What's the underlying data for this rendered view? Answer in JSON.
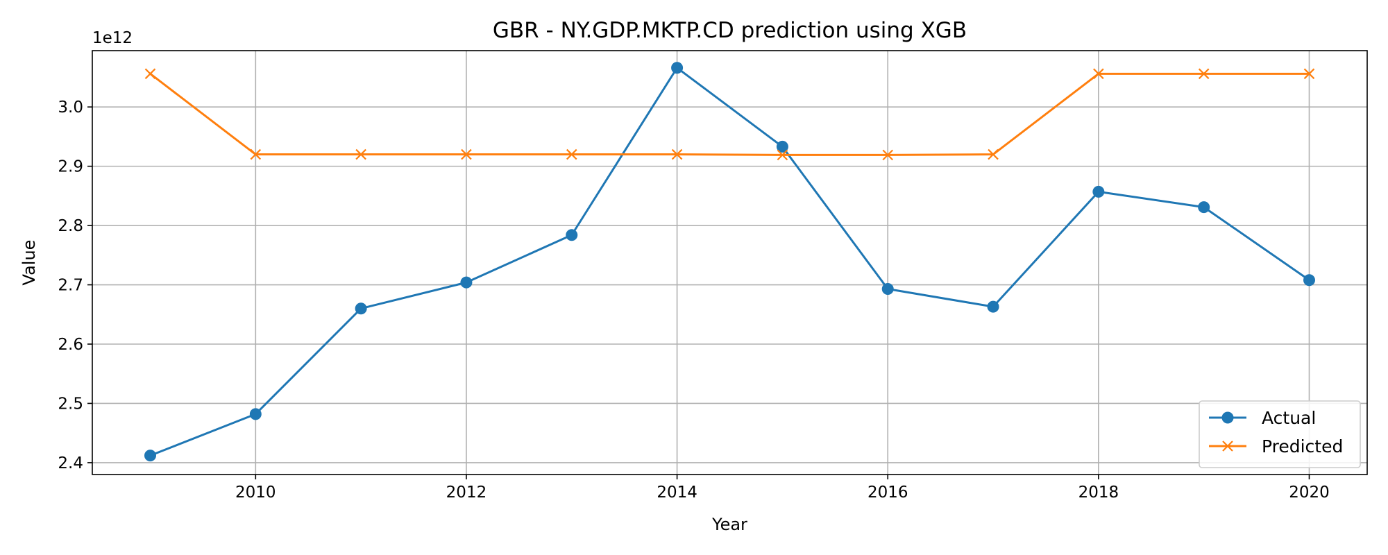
{
  "chart_data": {
    "type": "line",
    "title": "GBR - NY.GDP.MKTP.CD prediction using XGB",
    "xlabel": "Year",
    "ylabel": "Value",
    "y_offset_label": "1e12",
    "x": [
      2009,
      2010,
      2011,
      2012,
      2013,
      2014,
      2015,
      2016,
      2017,
      2018,
      2019,
      2020
    ],
    "xlim": [
      2008.45,
      2020.55
    ],
    "ylim": [
      2.38,
      3.095
    ],
    "x_ticks": [
      2010,
      2012,
      2014,
      2016,
      2018,
      2020
    ],
    "y_ticks": [
      2.4,
      2.5,
      2.6,
      2.7,
      2.8,
      2.9,
      3.0
    ],
    "y_tick_labels": [
      "2.4",
      "2.5",
      "2.6",
      "2.7",
      "2.8",
      "2.9",
      "3.0"
    ],
    "grid": true,
    "legend_position": "lower-right",
    "series": [
      {
        "name": "Actual",
        "color": "#1f77b4",
        "marker": "circle",
        "values": [
          2.412,
          2.482,
          2.66,
          2.704,
          2.784,
          3.066,
          2.933,
          2.693,
          2.663,
          2.857,
          2.831,
          2.708
        ]
      },
      {
        "name": "Predicted",
        "color": "#ff7f0e",
        "marker": "x",
        "values": [
          3.056,
          2.92,
          2.92,
          2.92,
          2.92,
          2.92,
          2.919,
          2.919,
          2.92,
          3.056,
          3.056,
          3.056
        ]
      }
    ]
  }
}
